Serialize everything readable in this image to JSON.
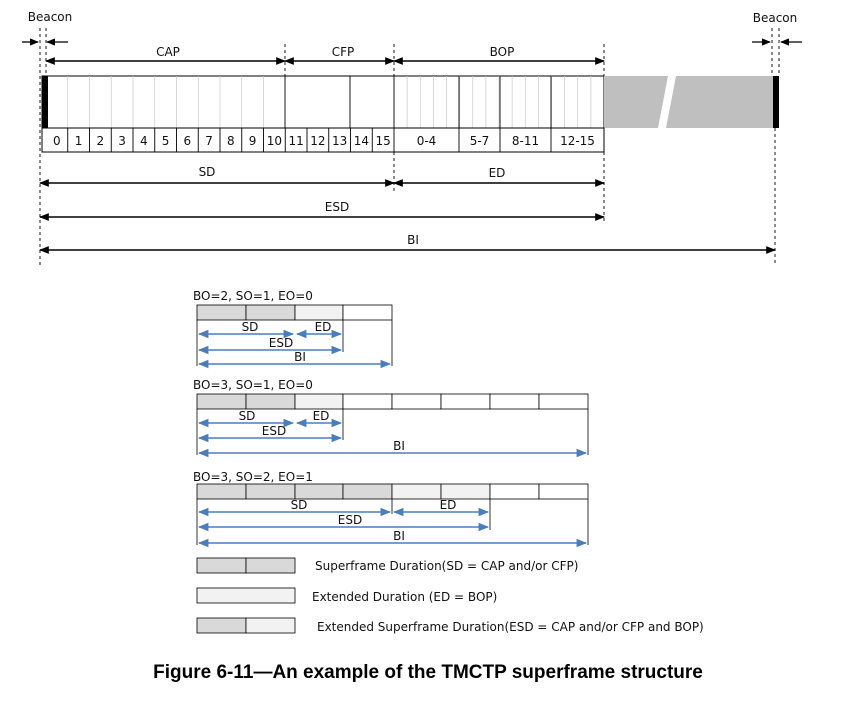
{
  "top": {
    "beacon_label": "Beacon",
    "cap_label": "CAP",
    "cfp_label": "CFP",
    "bop_label": "BOP",
    "slot_labels": [
      "0",
      "1",
      "2",
      "3",
      "4",
      "5",
      "6",
      "7",
      "8",
      "9",
      "10",
      "11",
      "12",
      "13",
      "14",
      "15"
    ],
    "bop_slot_labels": [
      "0-4",
      "5-7",
      "8-11",
      "12-15"
    ],
    "sd_label": "SD",
    "ed_label": "ED",
    "esd_label": "ESD",
    "bi_label": "BI"
  },
  "examples": [
    {
      "title": "BO=2, SO=1, EO=0",
      "sd_label": "SD",
      "ed_label": "ED",
      "esd_label": "ESD",
      "bi_label": "BI"
    },
    {
      "title": "BO=3, SO=1, EO=0",
      "sd_label": "SD",
      "ed_label": "ED",
      "esd_label": "ESD",
      "bi_label": "BI"
    },
    {
      "title": "BO=3, SO=2, EO=1",
      "sd_label": "SD",
      "ed_label": "ED",
      "esd_label": "ESD",
      "bi_label": "BI"
    }
  ],
  "legend": [
    {
      "text": "Superframe Duration(SD = CAP and/or CFP)"
    },
    {
      "text": "Extended Duration (ED = BOP)"
    },
    {
      "text": "Extended Superframe Duration(ESD = CAP and/or CFP and BOP)"
    }
  ],
  "caption": "Figure 6-11—An example of the TMCTP superframe structure",
  "colors": {
    "sd_fill": "#d9d9d9",
    "ed_fill": "#f2f2f2",
    "inactive_fill": "#bfbfbf",
    "arrow_blue": "#4a7ebb",
    "beacon": "#000000"
  }
}
